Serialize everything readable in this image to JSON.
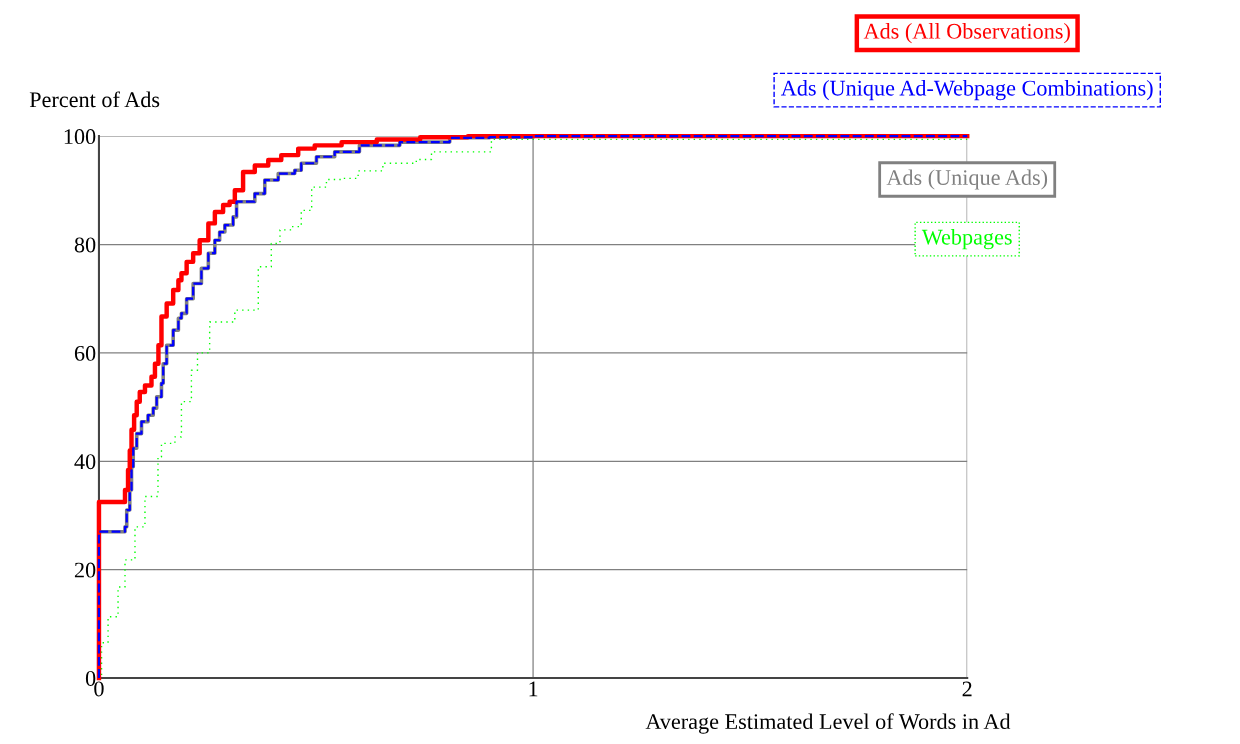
{
  "chart_data": {
    "type": "step",
    "xlabel": "Average Estimated Level of Words in Ad",
    "ylabel": "Percent of Ads",
    "xlim": [
      0,
      2
    ],
    "xticks": [
      0,
      1,
      2
    ],
    "ylim": [
      0,
      100
    ],
    "yticks": [
      0,
      20,
      40,
      60,
      80,
      100
    ],
    "grid": true,
    "legend": "top right",
    "series": [
      {
        "name": "Ads (All Observations)",
        "color": "#ff0000",
        "line_style": "solid",
        "x": [
          0,
          0,
          0.048,
          0.06,
          0.067,
          0.071,
          0.075,
          0.081,
          0.087,
          0.094,
          0.106,
          0.121,
          0.129,
          0.137,
          0.144,
          0.156,
          0.171,
          0.183,
          0.19,
          0.202,
          0.217,
          0.232,
          0.252,
          0.267,
          0.286,
          0.301,
          0.313,
          0.332,
          0.359,
          0.39,
          0.42,
          0.459,
          0.497,
          0.559,
          0.64,
          0.74,
          0.85,
          2
        ],
        "values": [
          0,
          32.5,
          32.5,
          34.7,
          38.4,
          42,
          45.8,
          48.5,
          51,
          52.8,
          54,
          55.6,
          58,
          61.4,
          66.7,
          69.1,
          71.6,
          73.4,
          74.7,
          76.8,
          78.4,
          80.8,
          83.9,
          86,
          87.3,
          87.9,
          90,
          93.4,
          94.6,
          95.6,
          96.5,
          97.7,
          98.3,
          98.9,
          99.4,
          99.8,
          100,
          100
        ]
      },
      {
        "name": "Ads (Unique Ad-Webpage Combinations)",
        "color": "#0000ff",
        "line_style": "dashed",
        "x": [
          0,
          0,
          0.052,
          0.06,
          0.064,
          0.071,
          0.075,
          0.079,
          0.087,
          0.098,
          0.113,
          0.125,
          0.133,
          0.144,
          0.148,
          0.156,
          0.171,
          0.183,
          0.19,
          0.202,
          0.217,
          0.236,
          0.252,
          0.267,
          0.278,
          0.29,
          0.309,
          0.317,
          0.359,
          0.382,
          0.413,
          0.451,
          0.466,
          0.501,
          0.543,
          0.6,
          0.693,
          0.808,
          0.9,
          1.0,
          2
        ],
        "values": [
          0,
          27,
          27,
          27.9,
          31,
          34.7,
          39,
          42.4,
          45.1,
          47.3,
          48.5,
          49.8,
          51.9,
          54.4,
          58,
          61.4,
          64.2,
          66.4,
          67.3,
          70,
          72.8,
          75.6,
          78.4,
          80.8,
          82.3,
          83.6,
          85.1,
          87.9,
          89.4,
          91.9,
          93.1,
          93.7,
          95,
          96.2,
          97.1,
          98.3,
          98.9,
          99.7,
          99.8,
          100,
          100
        ]
      },
      {
        "name": "Ads (Unique Ads)",
        "color": "#808080",
        "line_style": "solid",
        "x": [
          0,
          0,
          0.052,
          0.06,
          0.064,
          0.071,
          0.075,
          0.079,
          0.087,
          0.098,
          0.113,
          0.125,
          0.133,
          0.144,
          0.148,
          0.156,
          0.171,
          0.183,
          0.19,
          0.202,
          0.217,
          0.236,
          0.252,
          0.267,
          0.278,
          0.29,
          0.309,
          0.317,
          0.359,
          0.382,
          0.413,
          0.451,
          0.466,
          0.501,
          0.543,
          0.6,
          0.693,
          0.808,
          0.9,
          1.0,
          2
        ],
        "values": [
          0,
          27,
          27,
          27.9,
          31,
          34.7,
          39,
          42.4,
          45.1,
          47.3,
          48.5,
          49.8,
          51.9,
          54.4,
          58,
          61.4,
          64.2,
          66.4,
          67.3,
          70,
          72.8,
          75.6,
          78.4,
          80.8,
          82.3,
          83.6,
          85.1,
          87.9,
          89.4,
          91.9,
          93.1,
          93.7,
          95,
          96.2,
          97.1,
          98.3,
          98.9,
          99.7,
          99.8,
          100,
          100
        ]
      },
      {
        "name": "Webpages",
        "color": "#00ff00",
        "line_style": "dotted",
        "x": [
          0,
          0.006,
          0.021,
          0.044,
          0.06,
          0.083,
          0.106,
          0.136,
          0.144,
          0.175,
          0.19,
          0.213,
          0.227,
          0.255,
          0.313,
          0.367,
          0.397,
          0.417,
          0.443,
          0.466,
          0.49,
          0.524,
          0.562,
          0.597,
          0.647,
          0.654,
          0.731,
          0.766,
          0.884,
          0.904,
          2
        ],
        "values": [
          0,
          6.5,
          11.3,
          16.8,
          21.8,
          27.9,
          33.5,
          40.8,
          43.3,
          44.5,
          51,
          56.8,
          60,
          65.7,
          67.9,
          75.9,
          80.2,
          82.7,
          83.3,
          86.3,
          90.6,
          92,
          92.2,
          93.6,
          93.6,
          95,
          95.7,
          97.1,
          97.1,
          99.4,
          99.4
        ]
      }
    ]
  }
}
